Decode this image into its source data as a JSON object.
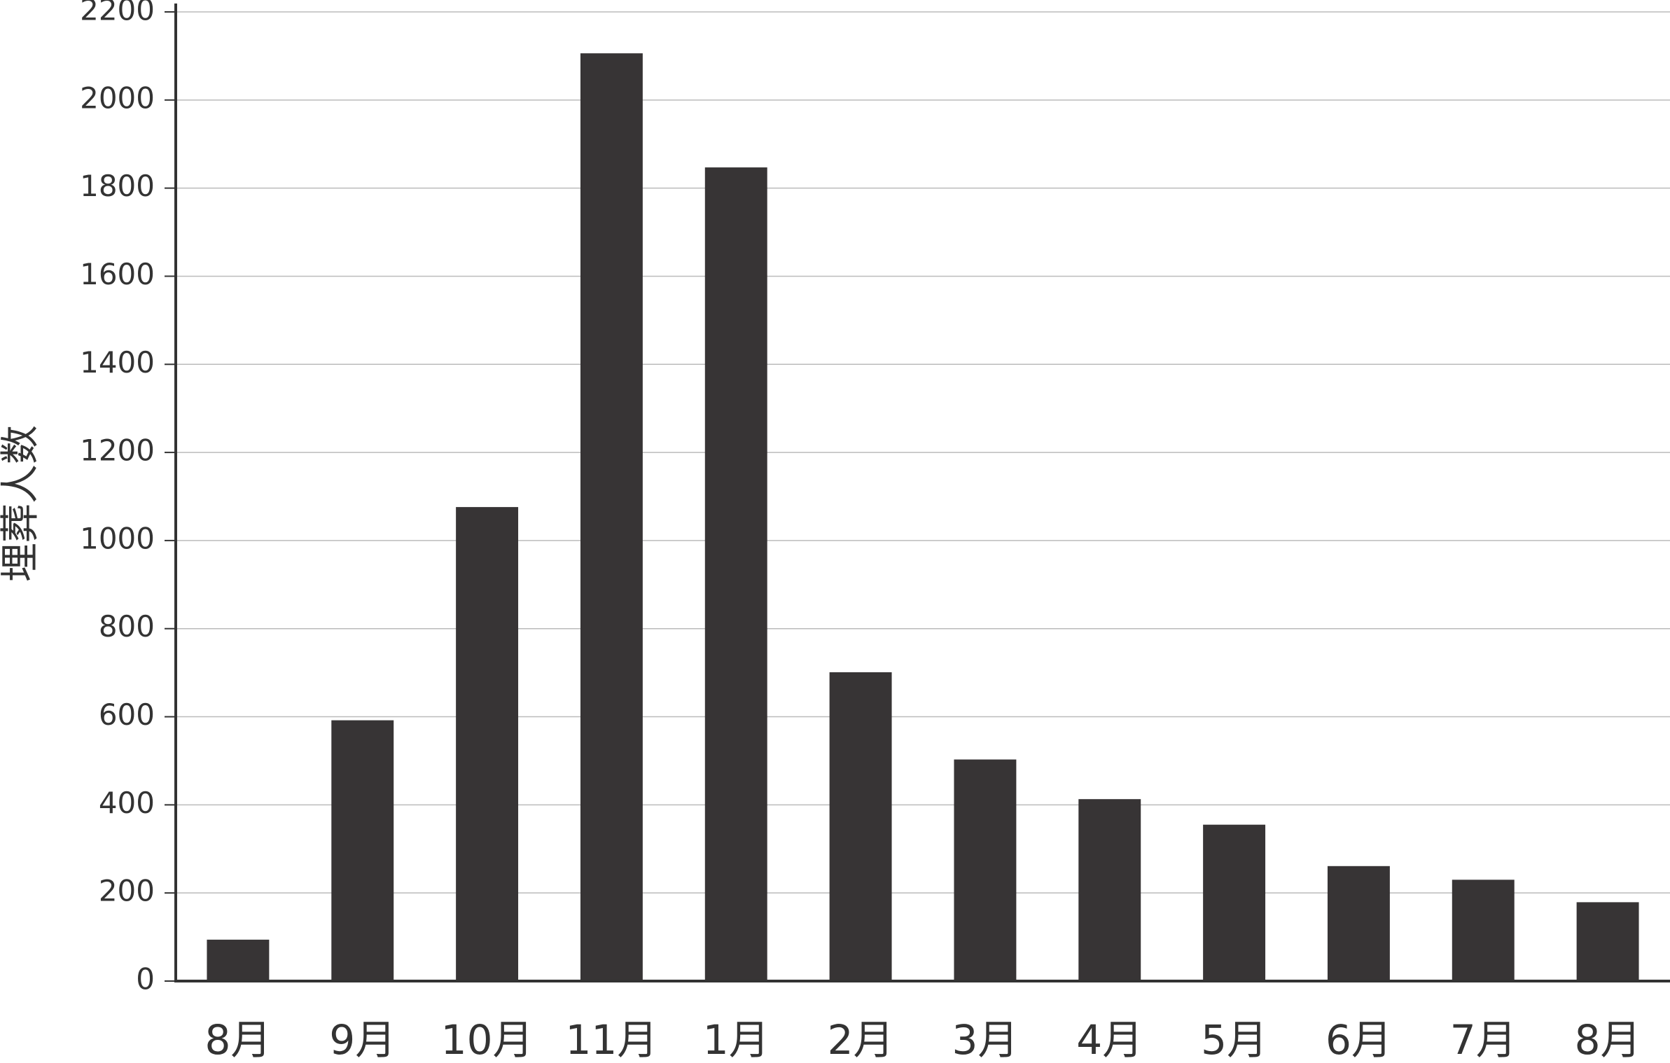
{
  "chart_data": {
    "type": "bar",
    "y_label": "埋葬人数",
    "categories": [
      "8月",
      "9月",
      "10月",
      "11月",
      "1月",
      "2月",
      "3月",
      "4月",
      "5月",
      "6月",
      "7月",
      "8月"
    ],
    "values": [
      94,
      592,
      1076,
      2106,
      1847,
      701,
      503,
      413,
      355,
      261,
      230,
      179
    ],
    "color": "#373435",
    "ylim": [
      0,
      2200
    ],
    "yticks": [
      0,
      200,
      400,
      600,
      800,
      1000,
      1200,
      1400,
      1600,
      1800,
      2000,
      2200
    ],
    "grid": true
  }
}
